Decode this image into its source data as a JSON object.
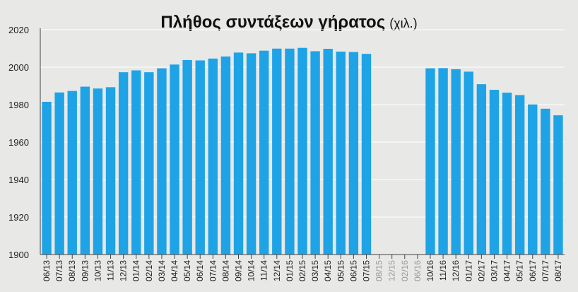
{
  "chart_data": {
    "type": "bar",
    "title": "Πλήθος συντάξεων γήρατος",
    "unit": "(χιλ.)",
    "xlabel": "",
    "ylabel": "",
    "ylim": [
      1900,
      2020
    ],
    "yticks": [
      1900,
      1920,
      1940,
      1960,
      1980,
      2000,
      2020
    ],
    "grid": true,
    "colors": {
      "bar": "#1ea3e6",
      "grid": "#ffffff",
      "label": "#222222",
      "missing_label": "#9a9a9a",
      "background": "#e8e8e6"
    },
    "categories": [
      "06/13",
      "07/13",
      "08/13",
      "09/13",
      "10/13",
      "11/13",
      "12/13",
      "01/14",
      "02/14",
      "03/14",
      "04/14",
      "05/14",
      "06/14",
      "07/14",
      "08/14",
      "09/14",
      "10/14",
      "11/14",
      "12/14",
      "01/15",
      "02/15",
      "03/15",
      "04/15",
      "05/15",
      "06/15",
      "07/15",
      "08/15",
      "12/15",
      "02/16",
      "06/16",
      "10/16",
      "11/16",
      "12/16",
      "01/17",
      "02/17",
      "03/17",
      "04/17",
      "05/17",
      "06/17",
      "07/17",
      "08/17"
    ],
    "values": [
      1981.5,
      1986.5,
      1987.3,
      1989.6,
      1988.6,
      1989.3,
      1997.3,
      1998.3,
      1997.3,
      1999.4,
      2001.4,
      2003.8,
      2003.6,
      2004.6,
      2005.7,
      2007.8,
      2007.4,
      2008.8,
      2009.9,
      2009.9,
      2010.3,
      2008.5,
      2009.8,
      2008.3,
      2008.1,
      2007.1,
      null,
      null,
      null,
      null,
      1999.4,
      1999.5,
      1998.9,
      1997.6,
      1990.9,
      1987.9,
      1986.4,
      1985.1,
      1980.1,
      1977.8,
      1974.3
    ]
  }
}
